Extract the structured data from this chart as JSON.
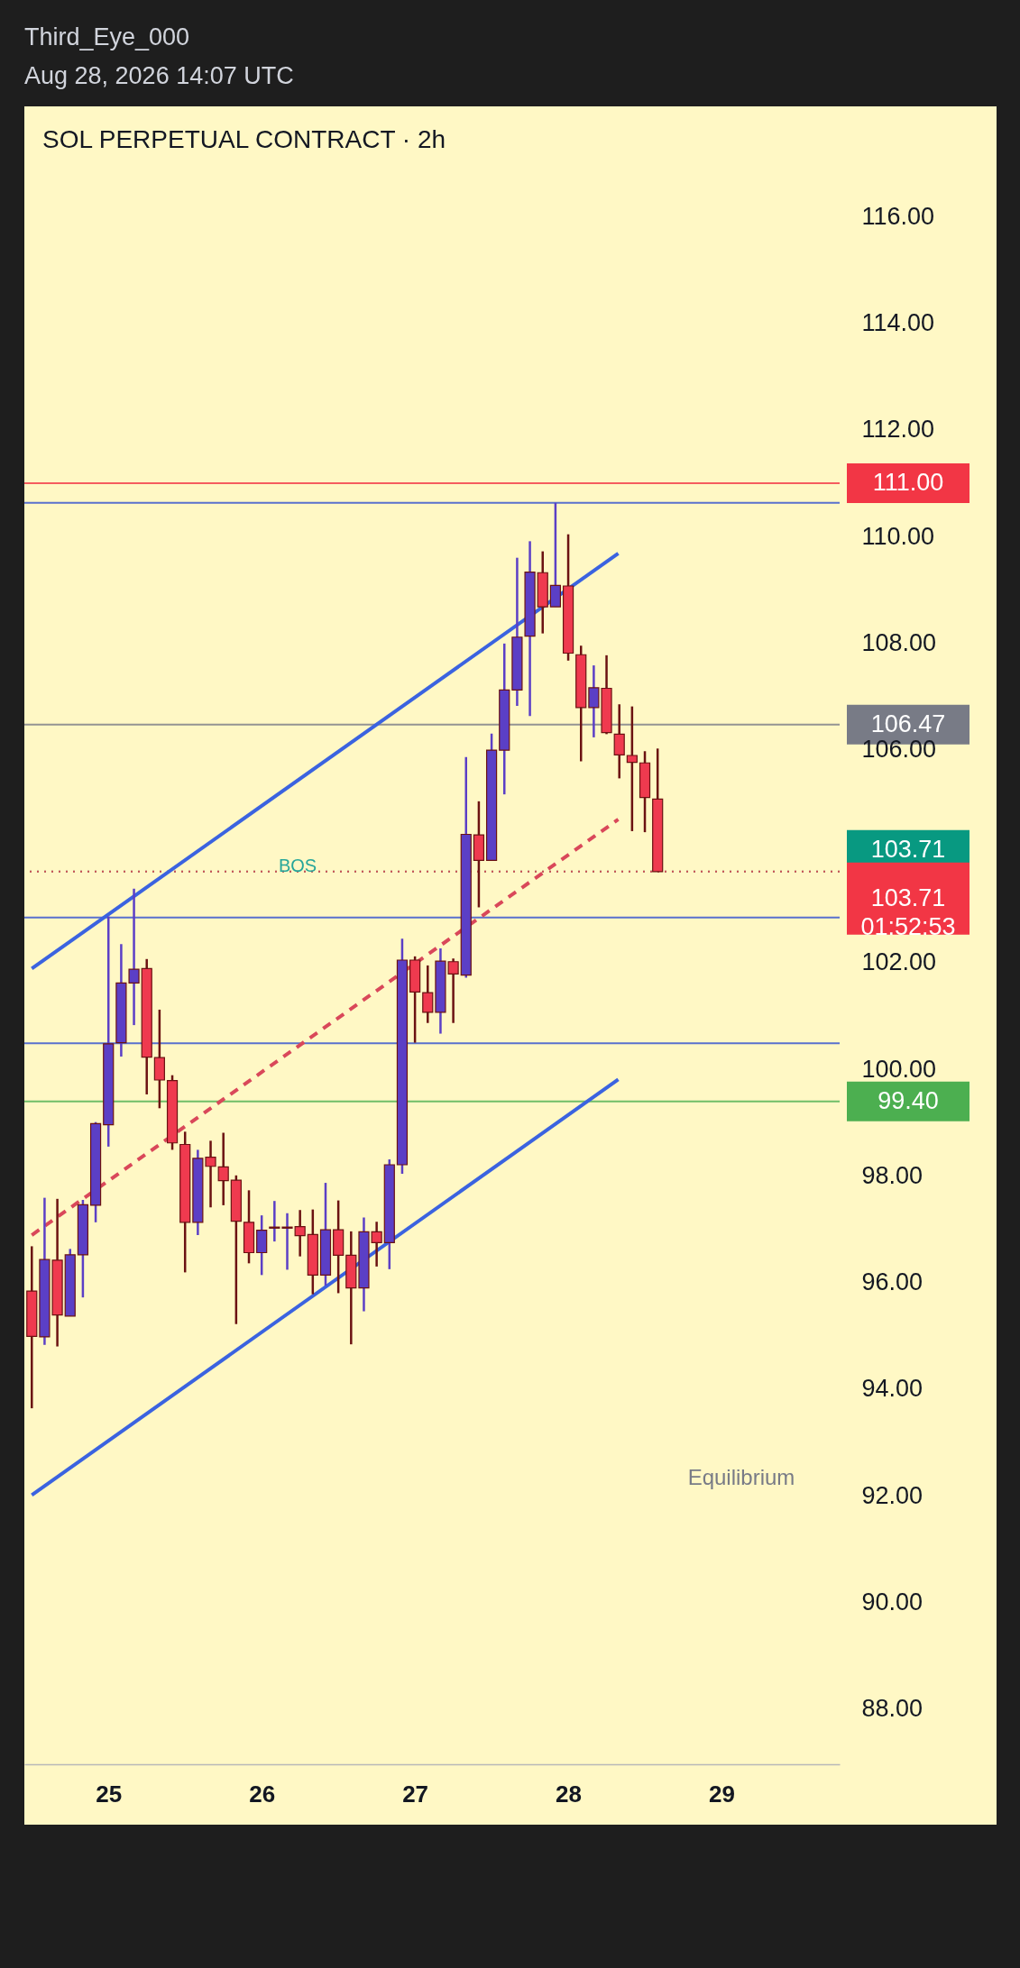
{
  "chart_data": {
    "type": "candlestick",
    "title": "SOL PERPETUAL CONTRACT · 2h",
    "annotations": [
      "Third_Eye_000",
      "Aug 28, 2026 14:07 UTC",
      "BOS",
      "Equilibrium"
    ],
    "x": [
      "2026-08-24T12:00",
      "2026-08-24T14:00",
      "2026-08-24T16:00",
      "2026-08-24T18:00",
      "2026-08-24T20:00",
      "2026-08-24T22:00",
      "2026-08-25T00:00",
      "2026-08-25T02:00",
      "2026-08-25T04:00",
      "2026-08-25T06:00",
      "2026-08-25T08:00",
      "2026-08-25T10:00",
      "2026-08-25T12:00",
      "2026-08-25T14:00",
      "2026-08-25T16:00",
      "2026-08-25T18:00",
      "2026-08-25T20:00",
      "2026-08-25T22:00",
      "2026-08-26T00:00",
      "2026-08-26T02:00",
      "2026-08-26T04:00",
      "2026-08-26T06:00",
      "2026-08-26T08:00",
      "2026-08-26T10:00",
      "2026-08-26T12:00",
      "2026-08-26T14:00",
      "2026-08-26T16:00",
      "2026-08-26T18:00",
      "2026-08-26T20:00",
      "2026-08-26T22:00",
      "2026-08-27T00:00",
      "2026-08-27T02:00",
      "2026-08-27T04:00",
      "2026-08-27T06:00",
      "2026-08-27T08:00",
      "2026-08-27T10:00",
      "2026-08-27T12:00",
      "2026-08-27T14:00",
      "2026-08-27T16:00",
      "2026-08-27T18:00",
      "2026-08-27T20:00",
      "2026-08-27T22:00",
      "2026-08-28T00:00",
      "2026-08-28T02:00",
      "2026-08-28T04:00",
      "2026-08-28T06:00",
      "2026-08-28T08:00",
      "2026-08-28T10:00",
      "2026-08-28T12:00",
      "2026-08-28T14:00"
    ],
    "ohlc": [
      [
        95.84,
        96.68,
        93.64,
        94.99
      ],
      [
        94.98,
        97.59,
        94.83,
        96.43
      ],
      [
        96.42,
        97.57,
        94.8,
        95.39
      ],
      [
        95.37,
        96.63,
        95.37,
        96.52
      ],
      [
        96.52,
        97.55,
        95.72,
        97.46
      ],
      [
        97.45,
        99.01,
        97.13,
        98.98
      ],
      [
        98.96,
        102.87,
        98.55,
        100.48
      ],
      [
        100.5,
        102.35,
        100.24,
        101.62
      ],
      [
        101.62,
        103.39,
        100.83,
        101.88
      ],
      [
        101.89,
        102.07,
        99.53,
        100.23
      ],
      [
        100.22,
        101.12,
        99.27,
        99.8
      ],
      [
        99.79,
        99.89,
        98.49,
        98.62
      ],
      [
        98.59,
        98.83,
        96.19,
        97.13
      ],
      [
        97.13,
        98.49,
        96.89,
        98.33
      ],
      [
        98.35,
        98.66,
        97.41,
        98.18
      ],
      [
        98.17,
        98.81,
        97.45,
        97.91
      ],
      [
        97.92,
        98.01,
        95.22,
        97.15
      ],
      [
        97.13,
        97.73,
        96.36,
        96.56
      ],
      [
        96.56,
        97.26,
        96.14,
        96.98
      ],
      [
        97.02,
        97.53,
        96.77,
        97.04
      ],
      [
        97.02,
        97.3,
        96.24,
        97.04
      ],
      [
        97.05,
        97.36,
        96.49,
        96.88
      ],
      [
        96.9,
        97.37,
        95.78,
        96.14
      ],
      [
        96.14,
        97.87,
        95.94,
        96.99
      ],
      [
        96.99,
        97.54,
        95.8,
        96.51
      ],
      [
        96.51,
        96.96,
        94.84,
        95.9
      ],
      [
        95.9,
        97.22,
        95.46,
        96.95
      ],
      [
        96.95,
        97.14,
        96.3,
        96.75
      ],
      [
        96.75,
        98.31,
        96.25,
        98.21
      ],
      [
        98.21,
        102.45,
        98.04,
        102.05
      ],
      [
        102.05,
        102.12,
        100.5,
        101.45
      ],
      [
        101.44,
        101.95,
        100.87,
        101.07
      ],
      [
        101.07,
        102.27,
        100.67,
        102.03
      ],
      [
        102.02,
        102.08,
        100.87,
        101.79
      ],
      [
        101.77,
        105.86,
        101.72,
        104.41
      ],
      [
        104.4,
        105.03,
        103.04,
        103.92
      ],
      [
        103.92,
        106.3,
        103.92,
        105.99
      ],
      [
        105.99,
        107.99,
        105.16,
        107.12
      ],
      [
        107.12,
        109.6,
        106.82,
        108.11
      ],
      [
        108.13,
        109.91,
        106.63,
        109.33
      ],
      [
        109.32,
        109.72,
        108.18,
        108.68
      ],
      [
        108.68,
        110.63,
        108.68,
        109.08
      ],
      [
        109.07,
        110.04,
        107.67,
        107.81
      ],
      [
        107.78,
        107.95,
        105.78,
        106.79
      ],
      [
        106.79,
        107.58,
        106.23,
        107.16
      ],
      [
        107.15,
        107.77,
        106.29,
        106.32
      ],
      [
        106.29,
        106.85,
        105.46,
        105.9
      ],
      [
        105.89,
        106.81,
        104.47,
        105.76
      ],
      [
        105.75,
        105.97,
        104.45,
        105.1
      ],
      [
        105.07,
        106.02,
        103.71,
        103.71
      ]
    ],
    "colors": [
      "#ef3a4f",
      "#5b3fc6",
      "#ef3a4f",
      "#5b3fc6",
      "#5b3fc6",
      "#5b3fc6",
      "#5b3fc6",
      "#5b3fc6",
      "#5b3fc6",
      "#ef3a4f",
      "#ef3a4f",
      "#ef3a4f",
      "#ef3a4f",
      "#5b3fc6",
      "#ef3a4f",
      "#ef3a4f",
      "#ef3a4f",
      "#ef3a4f",
      "#5b3fc6",
      "#5b3fc6",
      "#5b3fc6",
      "#ef3a4f",
      "#ef3a4f",
      "#5b3fc6",
      "#ef3a4f",
      "#ef3a4f",
      "#5b3fc6",
      "#ef3a4f",
      "#5b3fc6",
      "#5b3fc6",
      "#ef3a4f",
      "#ef3a4f",
      "#5b3fc6",
      "#ef3a4f",
      "#5b3fc6",
      "#ef3a4f",
      "#5b3fc6",
      "#5b3fc6",
      "#5b3fc6",
      "#5b3fc6",
      "#ef3a4f",
      "#5b3fc6",
      "#ef3a4f",
      "#ef3a4f",
      "#5b3fc6",
      "#ef3a4f",
      "#ef3a4f",
      "#ef3a4f",
      "#ef3a4f",
      "#ef3a4f"
    ],
    "series": [
      {
        "type": "line",
        "color": "#3b63e0",
        "x": [
          "2026-08-24T12:00",
          "2026-08-28T07:50"
        ],
        "values": [
          101.89,
          109.68
        ]
      },
      {
        "type": "line",
        "color": "#d9485a",
        "line_style": "dashed",
        "x": [
          "2026-08-24T12:00",
          "2026-08-28T07:50"
        ],
        "values": [
          96.89,
          104.69
        ]
      },
      {
        "type": "line",
        "color": "#3b63e0",
        "x": [
          "2026-08-24T12:00",
          "2026-08-28T07:50"
        ],
        "values": [
          92.01,
          99.81
        ]
      }
    ],
    "ref_lines": [
      {
        "axis": "y",
        "value": 110.63,
        "color": "#2f4fd0"
      },
      {
        "axis": "y",
        "value": 102.85,
        "color": "#2f4fd0"
      },
      {
        "axis": "y",
        "value": 100.49,
        "color": "#2f4fd0"
      },
      {
        "axis": "y",
        "value": 111.0,
        "label": "111.00",
        "color": "#f23645"
      },
      {
        "axis": "y",
        "value": 106.47,
        "label": "106.47",
        "color": "#787b86"
      },
      {
        "axis": "y",
        "value": 103.71,
        "label": "103.71",
        "color": "#089981",
        "line_style": "dotted"
      },
      {
        "axis": "y",
        "value": 103.71,
        "label": "103.71\n01:52:53",
        "color": "#f23645",
        "line_style": "dotted"
      },
      {
        "axis": "y",
        "value": 99.4,
        "label": "99.40",
        "color": "#4caf50"
      }
    ],
    "xlim": [
      "2026-08-24T10:50",
      "2026-08-29T18:30"
    ],
    "xticks": [
      {
        "value": "2026-08-25",
        "label": "25"
      },
      {
        "value": "2026-08-26",
        "label": "26"
      },
      {
        "value": "2026-08-27",
        "label": "27"
      },
      {
        "value": "2026-08-28",
        "label": "28"
      },
      {
        "value": "2026-08-29",
        "label": "29"
      }
    ],
    "ylim": [
      86.96,
      118.07
    ],
    "yticks": [
      {
        "value": 88,
        "label": "88.00"
      },
      {
        "value": 90,
        "label": "90.00"
      },
      {
        "value": 92,
        "label": "92.00"
      },
      {
        "value": 94,
        "label": "94.00"
      },
      {
        "value": 96,
        "label": "96.00"
      },
      {
        "value": 98,
        "label": "98.00"
      },
      {
        "value": 100,
        "label": "100.00"
      },
      {
        "value": 102,
        "label": "102.00"
      },
      {
        "value": 106,
        "label": "106.00"
      },
      {
        "value": 108,
        "label": "108.00"
      },
      {
        "value": 110,
        "label": "110.00"
      },
      {
        "value": 112,
        "label": "112.00"
      },
      {
        "value": 114,
        "label": "114.00"
      },
      {
        "value": 116,
        "label": "116.00"
      }
    ],
    "grid": false
  }
}
